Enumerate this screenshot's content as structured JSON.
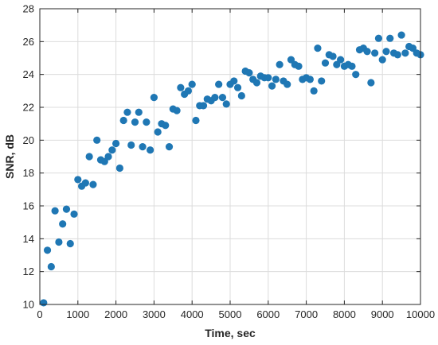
{
  "chart_data": {
    "type": "scatter",
    "title": "",
    "xlabel": "Time, sec",
    "ylabel": "SNR, dB",
    "xlim": [
      0,
      10000
    ],
    "ylim": [
      10,
      28
    ],
    "xticks": [
      0,
      1000,
      2000,
      3000,
      4000,
      5000,
      6000,
      7000,
      8000,
      9000,
      10000
    ],
    "yticks": [
      10,
      12,
      14,
      16,
      18,
      20,
      22,
      24,
      26,
      28
    ],
    "grid": true,
    "marker_color": "#1f77b4",
    "series": [
      {
        "points": [
          [
            100,
            10.1
          ],
          [
            200,
            13.3
          ],
          [
            300,
            12.3
          ],
          [
            400,
            15.7
          ],
          [
            500,
            13.8
          ],
          [
            600,
            14.9
          ],
          [
            700,
            15.8
          ],
          [
            800,
            13.7
          ],
          [
            900,
            15.5
          ],
          [
            1000,
            17.6
          ],
          [
            1100,
            17.2
          ],
          [
            1200,
            17.4
          ],
          [
            1300,
            19.0
          ],
          [
            1400,
            17.3
          ],
          [
            1500,
            20.0
          ],
          [
            1600,
            18.8
          ],
          [
            1700,
            18.7
          ],
          [
            1800,
            19.0
          ],
          [
            1900,
            19.4
          ],
          [
            2000,
            19.8
          ],
          [
            2100,
            18.3
          ],
          [
            2200,
            21.2
          ],
          [
            2300,
            21.7
          ],
          [
            2400,
            19.7
          ],
          [
            2500,
            21.1
          ],
          [
            2600,
            21.7
          ],
          [
            2700,
            19.6
          ],
          [
            2800,
            21.1
          ],
          [
            2900,
            19.4
          ],
          [
            3000,
            22.6
          ],
          [
            3100,
            20.5
          ],
          [
            3200,
            21.0
          ],
          [
            3300,
            20.9
          ],
          [
            3400,
            19.6
          ],
          [
            3500,
            21.9
          ],
          [
            3600,
            21.8
          ],
          [
            3700,
            23.2
          ],
          [
            3800,
            22.8
          ],
          [
            3900,
            23.0
          ],
          [
            4000,
            23.4
          ],
          [
            4100,
            21.2
          ],
          [
            4200,
            22.1
          ],
          [
            4300,
            22.1
          ],
          [
            4400,
            22.5
          ],
          [
            4500,
            22.4
          ],
          [
            4600,
            22.6
          ],
          [
            4700,
            23.4
          ],
          [
            4800,
            22.6
          ],
          [
            4900,
            22.2
          ],
          [
            5000,
            23.4
          ],
          [
            5100,
            23.6
          ],
          [
            5200,
            23.2
          ],
          [
            5300,
            22.7
          ],
          [
            5400,
            24.2
          ],
          [
            5500,
            24.1
          ],
          [
            5600,
            23.7
          ],
          [
            5700,
            23.5
          ],
          [
            5800,
            23.9
          ],
          [
            5900,
            23.8
          ],
          [
            6000,
            23.8
          ],
          [
            6100,
            23.3
          ],
          [
            6200,
            23.7
          ],
          [
            6300,
            24.6
          ],
          [
            6400,
            23.6
          ],
          [
            6500,
            23.4
          ],
          [
            6600,
            24.9
          ],
          [
            6700,
            24.6
          ],
          [
            6800,
            24.5
          ],
          [
            6900,
            23.7
          ],
          [
            7000,
            23.8
          ],
          [
            7100,
            23.7
          ],
          [
            7200,
            23.0
          ],
          [
            7300,
            25.6
          ],
          [
            7400,
            23.6
          ],
          [
            7500,
            24.7
          ],
          [
            7600,
            25.2
          ],
          [
            7700,
            25.1
          ],
          [
            7800,
            24.6
          ],
          [
            7900,
            24.9
          ],
          [
            8000,
            24.5
          ],
          [
            8100,
            24.6
          ],
          [
            8200,
            24.5
          ],
          [
            8300,
            24.0
          ],
          [
            8400,
            25.5
          ],
          [
            8500,
            25.6
          ],
          [
            8600,
            25.4
          ],
          [
            8700,
            23.5
          ],
          [
            8800,
            25.3
          ],
          [
            8900,
            26.2
          ],
          [
            9000,
            24.9
          ],
          [
            9100,
            25.4
          ],
          [
            9200,
            26.2
          ],
          [
            9300,
            25.3
          ],
          [
            9400,
            25.2
          ],
          [
            9500,
            26.4
          ],
          [
            9600,
            25.3
          ],
          [
            9700,
            25.7
          ],
          [
            9800,
            25.6
          ],
          [
            9900,
            25.3
          ],
          [
            10000,
            25.2
          ]
        ]
      }
    ]
  }
}
